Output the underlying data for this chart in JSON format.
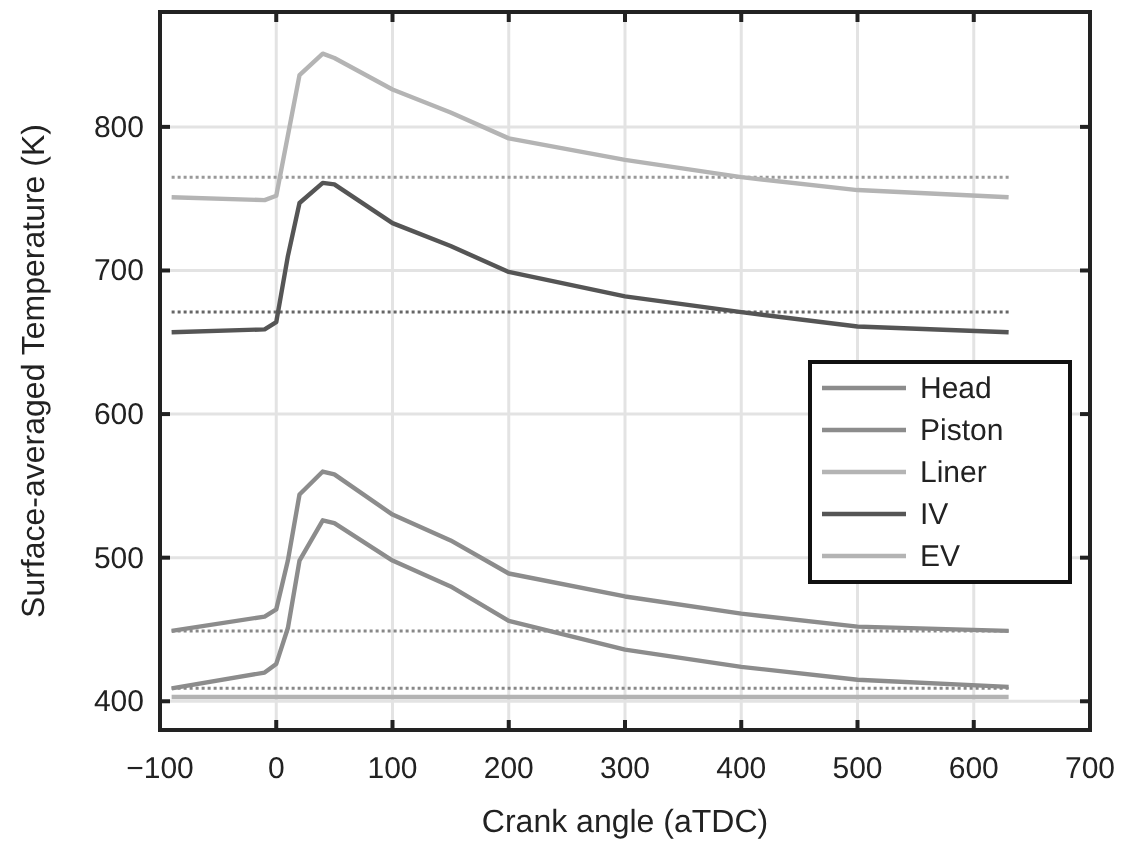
{
  "chart_data": {
    "type": "line",
    "xlabel": "Crank angle (aTDC)",
    "ylabel": "Surface-averaged Temperature (K)",
    "x": [
      -90,
      -10,
      0,
      10,
      20,
      40,
      50,
      100,
      150,
      200,
      300,
      400,
      500,
      630
    ],
    "series": [
      {
        "name": "Head",
        "color": "#8c8c8c",
        "values": [
          449,
          459,
          464,
          498,
          544,
          560,
          558,
          530,
          512,
          489,
          473,
          461,
          452,
          449
        ]
      },
      {
        "name": "Piston",
        "color": "#8c8c8c",
        "values": [
          409,
          420,
          426,
          451,
          498,
          526,
          524,
          498,
          480,
          456,
          436,
          424,
          415,
          410
        ]
      },
      {
        "name": "Liner",
        "color": "#b4b4b4",
        "values": [
          751,
          749,
          752,
          794,
          836,
          851,
          848,
          826,
          810,
          792,
          777,
          765,
          756,
          751
        ]
      },
      {
        "name": "IV",
        "color": "#555555",
        "values": [
          657,
          659,
          664,
          710,
          747,
          761,
          760,
          733,
          717,
          699,
          682,
          671,
          661,
          657
        ]
      },
      {
        "name": "EV",
        "color": "#b4b4b4",
        "values": [
          403,
          403,
          403,
          403,
          403,
          403,
          403,
          403,
          403,
          403,
          403,
          403,
          403,
          403
        ]
      }
    ],
    "ref_lines": [
      {
        "axis": "y",
        "value": 765,
        "color": "#999999",
        "line_style": "dotted"
      },
      {
        "axis": "y",
        "value": 671,
        "color": "#666666",
        "line_style": "dotted"
      },
      {
        "axis": "y",
        "value": 449,
        "color": "#888888",
        "line_style": "dotted"
      },
      {
        "axis": "y",
        "value": 409,
        "color": "#888888",
        "line_style": "dotted"
      }
    ],
    "xlim": [
      -100,
      700
    ],
    "xticks": [
      {
        "value": -100,
        "label": "−100"
      },
      0,
      100,
      200,
      300,
      400,
      500,
      600,
      700
    ],
    "ylim": [
      380,
      880
    ],
    "yticks": [
      400,
      500,
      600,
      700,
      800
    ],
    "grid": true,
    "legend": "right",
    "marker": "none",
    "line_style": "solid"
  }
}
